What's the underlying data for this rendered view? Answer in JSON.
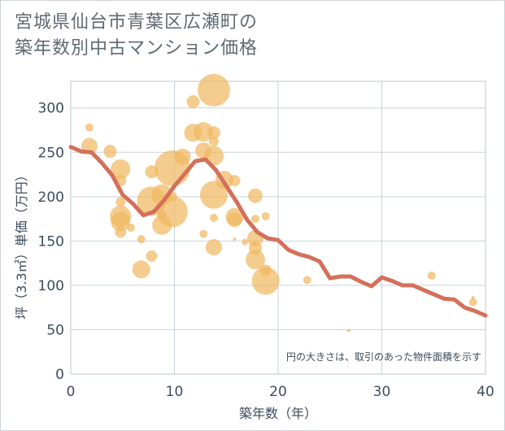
{
  "title_line1": "宮城県仙台市青葉区広瀬町の",
  "title_line2": "築年数別中古マンション価格",
  "chart_data": {
    "type": "scatter+line",
    "xlabel": "築年数（年）",
    "ylabel": "坪（3.3㎡）単価（万円）",
    "xlim": [
      0,
      40
    ],
    "ylim": [
      0,
      330
    ],
    "xticks": [
      0,
      10,
      20,
      30,
      40
    ],
    "yticks": [
      0,
      50,
      100,
      150,
      200,
      250,
      300
    ],
    "grid": true,
    "note": "円の大きさは、取引のあった物件面積を示す",
    "line_color": "#d4705a",
    "bubble_color": "#f0b962",
    "line": [
      {
        "x": 0,
        "y": 256
      },
      {
        "x": 1,
        "y": 251
      },
      {
        "x": 2,
        "y": 250
      },
      {
        "x": 3,
        "y": 238
      },
      {
        "x": 4,
        "y": 224
      },
      {
        "x": 5,
        "y": 202
      },
      {
        "x": 6,
        "y": 192
      },
      {
        "x": 7,
        "y": 179
      },
      {
        "x": 8,
        "y": 183
      },
      {
        "x": 9,
        "y": 196
      },
      {
        "x": 10,
        "y": 212
      },
      {
        "x": 11,
        "y": 226
      },
      {
        "x": 12,
        "y": 240
      },
      {
        "x": 13,
        "y": 242
      },
      {
        "x": 14,
        "y": 230
      },
      {
        "x": 15,
        "y": 212
      },
      {
        "x": 16,
        "y": 194
      },
      {
        "x": 17,
        "y": 174
      },
      {
        "x": 18,
        "y": 160
      },
      {
        "x": 19,
        "y": 153
      },
      {
        "x": 20,
        "y": 151
      },
      {
        "x": 21,
        "y": 140
      },
      {
        "x": 22,
        "y": 135
      },
      {
        "x": 23,
        "y": 132
      },
      {
        "x": 24,
        "y": 127
      },
      {
        "x": 25,
        "y": 108
      },
      {
        "x": 26,
        "y": 110
      },
      {
        "x": 27,
        "y": 110
      },
      {
        "x": 28,
        "y": 104
      },
      {
        "x": 29,
        "y": 99
      },
      {
        "x": 30,
        "y": 109
      },
      {
        "x": 31,
        "y": 105
      },
      {
        "x": 32,
        "y": 100
      },
      {
        "x": 33,
        "y": 100
      },
      {
        "x": 34,
        "y": 95
      },
      {
        "x": 35,
        "y": 90
      },
      {
        "x": 36,
        "y": 85
      },
      {
        "x": 37,
        "y": 84
      },
      {
        "x": 38,
        "y": 75
      },
      {
        "x": 39,
        "y": 71
      },
      {
        "x": 40,
        "y": 66
      }
    ],
    "bubbles": [
      {
        "x": 1.8,
        "y": 278,
        "r": 5
      },
      {
        "x": 1.8,
        "y": 257,
        "r": 10
      },
      {
        "x": 3.8,
        "y": 251,
        "r": 8
      },
      {
        "x": 4.8,
        "y": 231,
        "r": 12
      },
      {
        "x": 4.8,
        "y": 218,
        "r": 7
      },
      {
        "x": 4.8,
        "y": 194,
        "r": 6
      },
      {
        "x": 4.8,
        "y": 178,
        "r": 13
      },
      {
        "x": 4.8,
        "y": 172,
        "r": 12
      },
      {
        "x": 4.8,
        "y": 160,
        "r": 7
      },
      {
        "x": 5.8,
        "y": 165,
        "r": 5
      },
      {
        "x": 6.8,
        "y": 152,
        "r": 5
      },
      {
        "x": 6.8,
        "y": 118,
        "r": 11
      },
      {
        "x": 7.8,
        "y": 133,
        "r": 7
      },
      {
        "x": 7.8,
        "y": 228,
        "r": 8
      },
      {
        "x": 7.8,
        "y": 195,
        "r": 18
      },
      {
        "x": 8.8,
        "y": 202,
        "r": 13
      },
      {
        "x": 8.8,
        "y": 179,
        "r": 6
      },
      {
        "x": 8.8,
        "y": 168,
        "r": 12
      },
      {
        "x": 9.8,
        "y": 232,
        "r": 22
      },
      {
        "x": 9.8,
        "y": 183,
        "r": 19
      },
      {
        "x": 9.8,
        "y": 200,
        "r": 6
      },
      {
        "x": 10.8,
        "y": 245,
        "r": 10
      },
      {
        "x": 11.8,
        "y": 307,
        "r": 8
      },
      {
        "x": 11.8,
        "y": 272,
        "r": 11
      },
      {
        "x": 12.8,
        "y": 273,
        "r": 12
      },
      {
        "x": 12.8,
        "y": 252,
        "r": 10
      },
      {
        "x": 12.8,
        "y": 158,
        "r": 5
      },
      {
        "x": 13.8,
        "y": 320,
        "r": 20
      },
      {
        "x": 13.8,
        "y": 272,
        "r": 8
      },
      {
        "x": 13.8,
        "y": 262,
        "r": 6
      },
      {
        "x": 13.8,
        "y": 246,
        "r": 12
      },
      {
        "x": 13.8,
        "y": 202,
        "r": 17
      },
      {
        "x": 13.8,
        "y": 176,
        "r": 5
      },
      {
        "x": 13.8,
        "y": 143,
        "r": 10
      },
      {
        "x": 14.8,
        "y": 219,
        "r": 11
      },
      {
        "x": 15.8,
        "y": 218,
        "r": 7
      },
      {
        "x": 15.8,
        "y": 177,
        "r": 11
      },
      {
        "x": 15.8,
        "y": 174,
        "r": 9
      },
      {
        "x": 15.8,
        "y": 152,
        "r": 2
      },
      {
        "x": 16.8,
        "y": 149,
        "r": 4
      },
      {
        "x": 17.8,
        "y": 201,
        "r": 9
      },
      {
        "x": 17.8,
        "y": 175,
        "r": 5
      },
      {
        "x": 17.8,
        "y": 153,
        "r": 10
      },
      {
        "x": 17.8,
        "y": 142,
        "r": 8
      },
      {
        "x": 17.8,
        "y": 129,
        "r": 12
      },
      {
        "x": 18.8,
        "y": 178,
        "r": 5
      },
      {
        "x": 18.8,
        "y": 117,
        "r": 7
      },
      {
        "x": 18.8,
        "y": 105,
        "r": 17
      },
      {
        "x": 22.8,
        "y": 106,
        "r": 5
      },
      {
        "x": 26.8,
        "y": 49,
        "r": 2
      },
      {
        "x": 34.8,
        "y": 111,
        "r": 5
      },
      {
        "x": 38.8,
        "y": 81,
        "r": 5
      },
      {
        "x": 38.8,
        "y": 86,
        "r": 2
      }
    ]
  }
}
